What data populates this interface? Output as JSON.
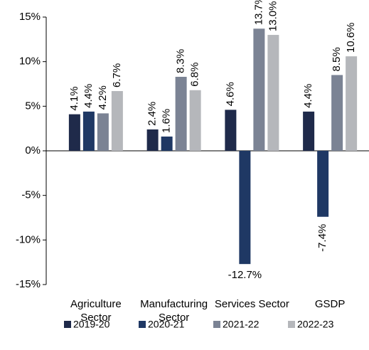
{
  "chart_data": {
    "type": "bar",
    "categories": [
      "Agriculture Sector",
      "Manufacturing Sector",
      "Services Sector",
      "GSDP"
    ],
    "series": [
      {
        "name": "2019-20",
        "color": "#1f2a4a",
        "values": [
          4.1,
          2.4,
          4.6,
          4.4
        ],
        "value_labels": [
          "4.1%",
          "2.4%",
          "4.6%",
          "4.4%"
        ]
      },
      {
        "name": "2020-21",
        "color": "#1f3864",
        "values": [
          4.4,
          1.6,
          -12.7,
          -7.4
        ],
        "value_labels": [
          "4.4%",
          "1.6%",
          "-12.7%",
          "-7.4%"
        ]
      },
      {
        "name": "2021-22",
        "color": "#7b8394",
        "values": [
          4.2,
          8.3,
          13.7,
          8.5
        ],
        "value_labels": [
          "4.2%",
          "8.3%",
          "13.7%",
          "8.5%"
        ]
      },
      {
        "name": "2022-23",
        "color": "#b5b7bb",
        "values": [
          6.7,
          6.8,
          13.0,
          10.6
        ],
        "value_labels": [
          "6.7%",
          "6.8%",
          "13.0%",
          "10.6%"
        ]
      }
    ],
    "ylim": [
      -15,
      15
    ],
    "yticks": [
      {
        "value": -15,
        "label": "-15%"
      },
      {
        "value": -10,
        "label": "-10%"
      },
      {
        "value": -5,
        "label": "-5%"
      },
      {
        "value": 0,
        "label": "0%"
      },
      {
        "value": 5,
        "label": "5%"
      },
      {
        "value": 10,
        "label": "10%"
      },
      {
        "value": 15,
        "label": "15%"
      }
    ],
    "legend": "bottom"
  }
}
